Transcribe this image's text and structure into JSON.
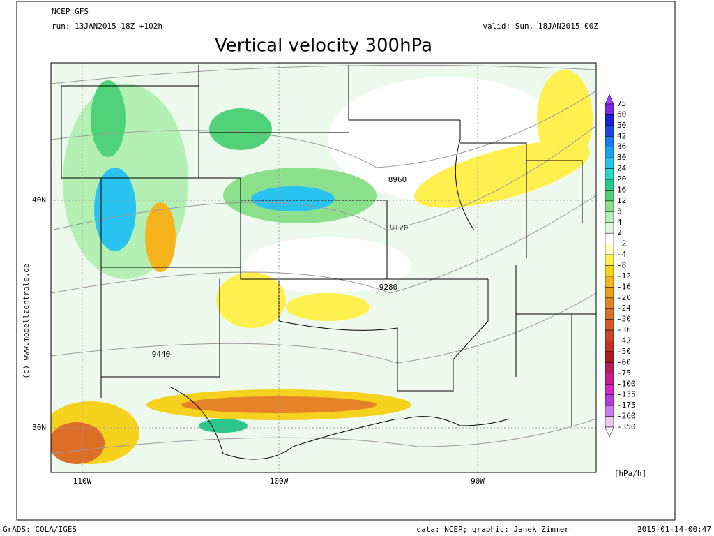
{
  "header": {
    "model": "NCEP GFS",
    "run": "run: 13JAN2015 18Z +102h",
    "valid": "valid: Sun, 18JAN2015 00Z",
    "title": "Vertical velocity 300hPa"
  },
  "map": {
    "lat_labels": [
      "40N",
      "30N"
    ],
    "lon_labels": [
      "110W",
      "100W",
      "90W"
    ],
    "contour_labels": [
      "8960",
      "9120",
      "9280",
      "9440"
    ],
    "credit": "(c) www.modellzentrale.de"
  },
  "legend": {
    "levels": [
      "75",
      "60",
      "50",
      "42",
      "36",
      "30",
      "24",
      "20",
      "16",
      "12",
      "8",
      "4",
      "2",
      "-2",
      "-4",
      "-8",
      "-12",
      "-16",
      "-20",
      "-24",
      "-30",
      "-36",
      "-42",
      "-50",
      "-60",
      "-75",
      "-100",
      "-135",
      "-175",
      "-260",
      "-350"
    ],
    "colors": [
      "#a040ff",
      "#7a28e6",
      "#1e1ed2",
      "#1e46e6",
      "#1e78f0",
      "#1ea0f0",
      "#28c3f0",
      "#2dd7c8",
      "#28c88c",
      "#50d278",
      "#8ce08c",
      "#b4f0b4",
      "#dcf8dc",
      "#ffffff",
      "#ffffc8",
      "#fff050",
      "#f5d21e",
      "#f5b41e",
      "#f09b1e",
      "#e68228",
      "#dc6e28",
      "#d25a28",
      "#c84628",
      "#be3228",
      "#aa1e1e",
      "#b41e5a",
      "#c81e8c",
      "#d228c8",
      "#b43cdc",
      "#d278f0",
      "#f0c8f0",
      "#faf0fa"
    ],
    "unit": "[hPa/h]"
  },
  "footer": {
    "left": "GrADS: COLA/IGES",
    "middle": "data: NCEP; graphic: Janek Zimmer",
    "right": "2015-01-14-00:47"
  }
}
